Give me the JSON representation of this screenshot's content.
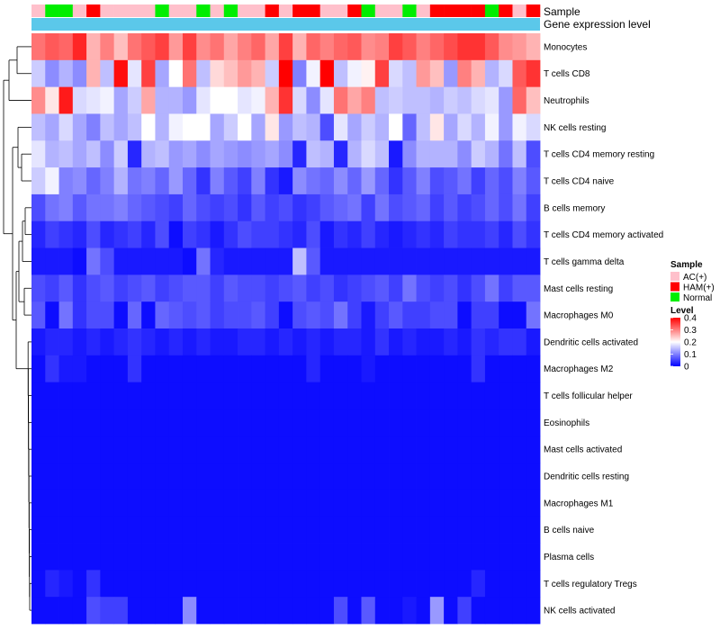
{
  "chart_data": {
    "type": "heatmap",
    "title": "",
    "annotation_rows": [
      "Sample",
      "Gene expression level"
    ],
    "rows": [
      "Monocytes",
      "T cells CD8",
      "Neutrophils",
      "NK cells resting",
      "T cells CD4 memory resting",
      "T cells CD4 naive",
      "B cells memory",
      "T cells CD4 memory activated",
      "T cells gamma delta",
      "Mast cells resting",
      "Macrophages M0",
      "Dendritic cells activated",
      "Macrophages M2",
      "T cells follicular helper",
      "Eosinophils",
      "Mast cells activated",
      "Dendritic cells resting",
      "Macrophages M1",
      "B cells naive",
      "Plasma cells",
      "T cells regulatory  Tregs",
      "NK cells activated"
    ],
    "samples": [
      "AC(+)",
      "Normal",
      "Normal",
      "AC(+)",
      "HAM(+)",
      "AC(+)",
      "AC(+)",
      "AC(+)",
      "AC(+)",
      "Normal",
      "AC(+)",
      "AC(+)",
      "Normal",
      "AC(+)",
      "Normal",
      "AC(+)",
      "AC(+)",
      "HAM(+)",
      "AC(+)",
      "HAM(+)",
      "HAM(+)",
      "AC(+)",
      "AC(+)",
      "HAM(+)",
      "Normal",
      "AC(+)",
      "AC(+)",
      "Normal",
      "AC(+)",
      "HAM(+)",
      "HAM(+)",
      "HAM(+)",
      "HAM(+)",
      "Normal",
      "HAM(+)",
      "AC(+)",
      "HAM(+)"
    ],
    "values": [
      [
        0.31,
        0.33,
        0.32,
        0.37,
        0.26,
        0.3,
        0.25,
        0.31,
        0.33,
        0.35,
        0.28,
        0.35,
        0.29,
        0.31,
        0.27,
        0.3,
        0.32,
        0.27,
        0.35,
        0.26,
        0.32,
        0.3,
        0.32,
        0.33,
        0.29,
        0.3,
        0.35,
        0.33,
        0.3,
        0.32,
        0.34,
        0.36,
        0.36,
        0.33,
        0.29,
        0.28,
        0.26
      ],
      [
        0.16,
        0.11,
        0.14,
        0.11,
        0.26,
        0.15,
        0.39,
        0.18,
        0.35,
        0.13,
        0.2,
        0.31,
        0.15,
        0.23,
        0.25,
        0.28,
        0.26,
        0.16,
        0.4,
        0.1,
        0.19,
        0.4,
        0.15,
        0.19,
        0.21,
        0.35,
        0.17,
        0.15,
        0.28,
        0.25,
        0.12,
        0.3,
        0.26,
        0.14,
        0.17,
        0.33,
        0.36
      ],
      [
        0.29,
        0.22,
        0.38,
        0.17,
        0.18,
        0.19,
        0.13,
        0.16,
        0.27,
        0.14,
        0.14,
        0.12,
        0.18,
        0.2,
        0.2,
        0.18,
        0.19,
        0.26,
        0.36,
        0.17,
        0.11,
        0.18,
        0.31,
        0.27,
        0.3,
        0.15,
        0.16,
        0.15,
        0.15,
        0.14,
        0.16,
        0.15,
        0.17,
        0.18,
        0.12,
        0.32,
        0.25
      ],
      [
        0.15,
        0.13,
        0.17,
        0.13,
        0.1,
        0.15,
        0.13,
        0.15,
        0.2,
        0.14,
        0.19,
        0.2,
        0.2,
        0.13,
        0.16,
        0.2,
        0.13,
        0.22,
        0.12,
        0.15,
        0.14,
        0.06,
        0.18,
        0.13,
        0.16,
        0.14,
        0.2,
        0.08,
        0.15,
        0.22,
        0.13,
        0.17,
        0.14,
        0.19,
        0.12,
        0.19,
        0.17
      ],
      [
        0.18,
        0.14,
        0.15,
        0.13,
        0.15,
        0.11,
        0.16,
        0.03,
        0.14,
        0.15,
        0.12,
        0.13,
        0.11,
        0.13,
        0.12,
        0.11,
        0.12,
        0.13,
        0.11,
        0.03,
        0.15,
        0.14,
        0.03,
        0.14,
        0.17,
        0.15,
        0.02,
        0.11,
        0.14,
        0.14,
        0.14,
        0.11,
        0.16,
        0.14,
        0.09,
        0.15,
        0.06
      ],
      [
        0.16,
        0.19,
        0.1,
        0.11,
        0.08,
        0.1,
        0.14,
        0.09,
        0.1,
        0.08,
        0.12,
        0.08,
        0.04,
        0.1,
        0.07,
        0.05,
        0.1,
        0.04,
        0.02,
        0.11,
        0.09,
        0.08,
        0.11,
        0.08,
        0.12,
        0.08,
        0.04,
        0.07,
        0.1,
        0.06,
        0.07,
        0.09,
        0.05,
        0.08,
        0.06,
        0.1,
        0.07
      ],
      [
        0.06,
        0.09,
        0.1,
        0.07,
        0.09,
        0.09,
        0.1,
        0.08,
        0.07,
        0.06,
        0.05,
        0.08,
        0.06,
        0.05,
        0.06,
        0.04,
        0.07,
        0.05,
        0.06,
        0.04,
        0.05,
        0.07,
        0.08,
        0.09,
        0.05,
        0.09,
        0.06,
        0.07,
        0.08,
        0.05,
        0.07,
        0.05,
        0.06,
        0.08,
        0.06,
        0.09,
        0.05
      ],
      [
        0.03,
        0.05,
        0.04,
        0.03,
        0.06,
        0.03,
        0.04,
        0.05,
        0.03,
        0.06,
        0.01,
        0.05,
        0.04,
        0.02,
        0.04,
        0.06,
        0.05,
        0.05,
        0.04,
        0.03,
        0.06,
        0.02,
        0.04,
        0.03,
        0.05,
        0.03,
        0.02,
        0.03,
        0.04,
        0.03,
        0.05,
        0.04,
        0.04,
        0.05,
        0.03,
        0.06,
        0.04
      ],
      [
        0.02,
        0.02,
        0.02,
        0.01,
        0.09,
        0.06,
        0.02,
        0.02,
        0.02,
        0.02,
        0.02,
        0.01,
        0.09,
        0.03,
        0.02,
        0.02,
        0.02,
        0.02,
        0.02,
        0.15,
        0.07,
        0.02,
        0.02,
        0.02,
        0.02,
        0.02,
        0.02,
        0.02,
        0.02,
        0.02,
        0.02,
        0.02,
        0.02,
        0.02,
        0.02,
        0.02,
        0.02
      ],
      [
        0.06,
        0.05,
        0.07,
        0.04,
        0.06,
        0.07,
        0.05,
        0.06,
        0.07,
        0.05,
        0.06,
        0.07,
        0.07,
        0.05,
        0.07,
        0.06,
        0.06,
        0.05,
        0.06,
        0.07,
        0.05,
        0.06,
        0.04,
        0.05,
        0.06,
        0.07,
        0.05,
        0.09,
        0.06,
        0.05,
        0.06,
        0.04,
        0.06,
        0.09,
        0.05,
        0.07,
        0.07
      ],
      [
        0.07,
        0.01,
        0.09,
        0.04,
        0.06,
        0.06,
        0.01,
        0.08,
        0.01,
        0.08,
        0.07,
        0.06,
        0.07,
        0.05,
        0.06,
        0.06,
        0.07,
        0.05,
        0.01,
        0.06,
        0.07,
        0.06,
        0.09,
        0.05,
        0.02,
        0.05,
        0.07,
        0.05,
        0.05,
        0.06,
        0.06,
        0.01,
        0.05,
        0.05,
        0.01,
        0.01,
        0.09
      ],
      [
        0.02,
        0.03,
        0.03,
        0.02,
        0.03,
        0.02,
        0.03,
        0.04,
        0.03,
        0.02,
        0.03,
        0.02,
        0.03,
        0.02,
        0.02,
        0.03,
        0.03,
        0.02,
        0.03,
        0.02,
        0.03,
        0.02,
        0.03,
        0.03,
        0.02,
        0.04,
        0.02,
        0.03,
        0.02,
        0.02,
        0.03,
        0.02,
        0.04,
        0.03,
        0.04,
        0.04,
        0.02
      ],
      [
        0.01,
        0.04,
        0.02,
        0.02,
        0.01,
        0.01,
        0.01,
        0.04,
        0.01,
        0.01,
        0.01,
        0.01,
        0.01,
        0.01,
        0.01,
        0.01,
        0.01,
        0.01,
        0.01,
        0.01,
        0.03,
        0.01,
        0.01,
        0.01,
        0.02,
        0.01,
        0.01,
        0.01,
        0.01,
        0.01,
        0.01,
        0.01,
        0.04,
        0.01,
        0.01,
        0.01,
        0.01
      ],
      [
        0.01,
        0.01,
        0.01,
        0.01,
        0.01,
        0.01,
        0.01,
        0.01,
        0.01,
        0.01,
        0.01,
        0.01,
        0.01,
        0.01,
        0.01,
        0.01,
        0.01,
        0.01,
        0.01,
        0.01,
        0.01,
        0.01,
        0.01,
        0.01,
        0.01,
        0.01,
        0.01,
        0.01,
        0.01,
        0.01,
        0.01,
        0.01,
        0.01,
        0.01,
        0.01,
        0.01,
        0.01
      ],
      [
        0.01,
        0.01,
        0.01,
        0.01,
        0.01,
        0.01,
        0.01,
        0.01,
        0.01,
        0.01,
        0.01,
        0.01,
        0.01,
        0.01,
        0.01,
        0.01,
        0.01,
        0.01,
        0.01,
        0.01,
        0.01,
        0.01,
        0.01,
        0.01,
        0.01,
        0.01,
        0.01,
        0.01,
        0.01,
        0.01,
        0.01,
        0.01,
        0.01,
        0.01,
        0.01,
        0.01,
        0.01
      ],
      [
        0.01,
        0.01,
        0.01,
        0.01,
        0.01,
        0.01,
        0.01,
        0.01,
        0.01,
        0.01,
        0.01,
        0.01,
        0.01,
        0.01,
        0.01,
        0.01,
        0.01,
        0.01,
        0.01,
        0.01,
        0.01,
        0.01,
        0.01,
        0.01,
        0.01,
        0.01,
        0.01,
        0.01,
        0.01,
        0.01,
        0.01,
        0.01,
        0.01,
        0.01,
        0.01,
        0.01,
        0.01
      ],
      [
        0.01,
        0.01,
        0.01,
        0.01,
        0.01,
        0.01,
        0.01,
        0.01,
        0.01,
        0.01,
        0.01,
        0.01,
        0.01,
        0.01,
        0.01,
        0.01,
        0.01,
        0.01,
        0.01,
        0.01,
        0.01,
        0.01,
        0.01,
        0.01,
        0.01,
        0.01,
        0.01,
        0.01,
        0.01,
        0.01,
        0.01,
        0.01,
        0.01,
        0.01,
        0.01,
        0.01,
        0.01
      ],
      [
        0.01,
        0.01,
        0.01,
        0.01,
        0.01,
        0.01,
        0.01,
        0.01,
        0.01,
        0.01,
        0.01,
        0.01,
        0.01,
        0.01,
        0.01,
        0.01,
        0.01,
        0.01,
        0.01,
        0.01,
        0.01,
        0.01,
        0.01,
        0.01,
        0.01,
        0.01,
        0.01,
        0.01,
        0.01,
        0.01,
        0.01,
        0.01,
        0.01,
        0.01,
        0.01,
        0.01,
        0.01
      ],
      [
        0.01,
        0.01,
        0.01,
        0.01,
        0.01,
        0.01,
        0.01,
        0.01,
        0.01,
        0.01,
        0.01,
        0.01,
        0.01,
        0.01,
        0.01,
        0.01,
        0.01,
        0.01,
        0.01,
        0.01,
        0.01,
        0.01,
        0.01,
        0.01,
        0.01,
        0.01,
        0.01,
        0.01,
        0.01,
        0.01,
        0.01,
        0.01,
        0.01,
        0.01,
        0.01,
        0.01,
        0.01
      ],
      [
        0.01,
        0.01,
        0.01,
        0.01,
        0.01,
        0.01,
        0.01,
        0.01,
        0.01,
        0.01,
        0.01,
        0.01,
        0.01,
        0.01,
        0.01,
        0.01,
        0.01,
        0.01,
        0.01,
        0.01,
        0.01,
        0.01,
        0.01,
        0.01,
        0.01,
        0.01,
        0.01,
        0.01,
        0.01,
        0.01,
        0.01,
        0.01,
        0.01,
        0.01,
        0.01,
        0.01,
        0.01
      ],
      [
        0.01,
        0.03,
        0.02,
        0.01,
        0.04,
        0.01,
        0.01,
        0.01,
        0.01,
        0.01,
        0.01,
        0.01,
        0.01,
        0.01,
        0.01,
        0.01,
        0.01,
        0.01,
        0.01,
        0.01,
        0.01,
        0.01,
        0.01,
        0.01,
        0.01,
        0.01,
        0.01,
        0.01,
        0.01,
        0.01,
        0.01,
        0.01,
        0.03,
        0.01,
        0.01,
        0.01,
        0.01
      ],
      [
        0.01,
        0.01,
        0.01,
        0.01,
        0.06,
        0.05,
        0.05,
        0.01,
        0.01,
        0.01,
        0.01,
        0.11,
        0.01,
        0.01,
        0.01,
        0.01,
        0.01,
        0.01,
        0.01,
        0.01,
        0.01,
        0.01,
        0.06,
        0.01,
        0.07,
        0.01,
        0.01,
        0.02,
        0.01,
        0.12,
        0.01,
        0.05,
        0.01,
        0.01,
        0.01,
        0.01,
        0.01
      ]
    ],
    "legend": {
      "sample_title": "Sample",
      "sample_entries": [
        {
          "label": "AC(+)",
          "color": "#FFC0CB"
        },
        {
          "label": "HAM(+)",
          "color": "#FF0000"
        },
        {
          "label": "Normal",
          "color": "#00EE00"
        }
      ],
      "level_title": "Level",
      "level_ticks": [
        "0.4",
        "0.3",
        "0.2",
        "0.1",
        "0"
      ],
      "level_range": [
        0,
        0.4
      ]
    },
    "gene_expression_color": "#5BC8EA",
    "colormap": {
      "low": "#0000FF",
      "mid": "#FFFFFF",
      "high": "#FF0000",
      "vmin": 0,
      "vmid": 0.2,
      "vmax": 0.4
    }
  }
}
